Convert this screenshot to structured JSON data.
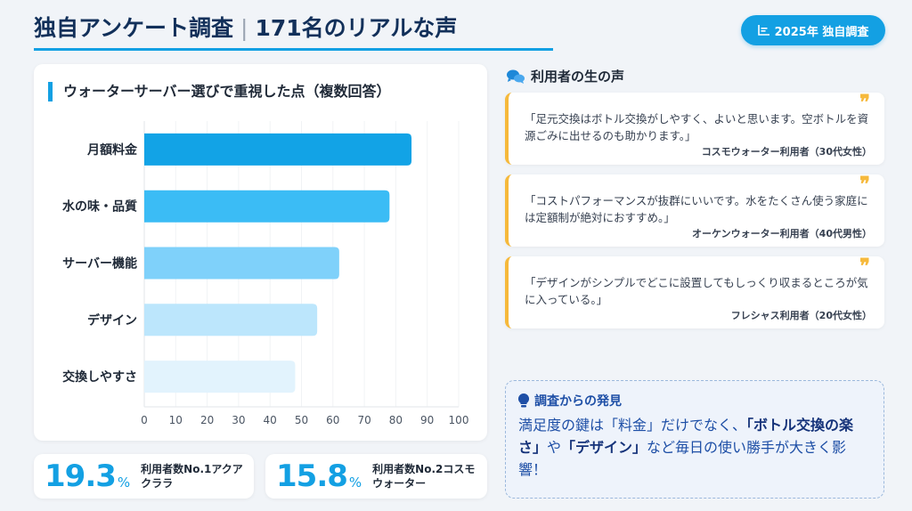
{
  "header": {
    "title_a": "独自アンケート調査",
    "title_sep": "|",
    "title_b": "171名のリアルな声",
    "badge_icon": "chart-bar-icon",
    "badge": "2025年 独自調査"
  },
  "chart_data": {
    "type": "bar",
    "orientation": "horizontal",
    "title": "ウォーターサーバー選びで重視した点（複数回答）",
    "categories": [
      "月額料金",
      "水の味・品質",
      "サーバー機能",
      "デザイン",
      "交換しやすさ"
    ],
    "values": [
      85,
      78,
      62,
      55,
      48
    ],
    "colors": [
      "#12a3e6",
      "#3bbcf5",
      "#7fd1fa",
      "#bce6fc",
      "#e2f3fd"
    ],
    "xlim": [
      0,
      100
    ],
    "xticks": [
      0,
      10,
      20,
      30,
      40,
      50,
      60,
      70,
      80,
      90,
      100
    ],
    "grid": true
  },
  "stats": [
    {
      "value": "19.3",
      "unit": "%",
      "label": "利用者数No.1アクアクララ"
    },
    {
      "value": "15.8",
      "unit": "%",
      "label": "利用者数No.2コスモウォーター"
    }
  ],
  "voices": {
    "icon": "comments-icon",
    "heading": "利用者の生の声",
    "items": [
      {
        "text": "「足元交換はボトル交換がしやすく、よいと思います。空ボトルを資源ごみに出せるのも助かります。」",
        "by": "コスモウォーター利用者（30代女性）"
      },
      {
        "text": "「コストパフォーマンスが抜群にいいです。水をたくさん使う家庭には定額制が絶対におすすめ。」",
        "by": "オーケンウォーター利用者（40代男性）"
      },
      {
        "text": "「デザインがシンプルでどこに設置してもしっくり収まるところが気に入っている。」",
        "by": "フレシャス利用者（20代女性）"
      }
    ]
  },
  "insight": {
    "icon": "lightbulb-icon",
    "heading": "調査からの発見",
    "p1": "満足度の鍵は「料金」だけでなく、",
    "s1": "「ボトル交換の楽さ」",
    "p2": "や",
    "s2": "「デザイン」",
    "p3": "など毎日の使い勝手が大きく影響！"
  }
}
